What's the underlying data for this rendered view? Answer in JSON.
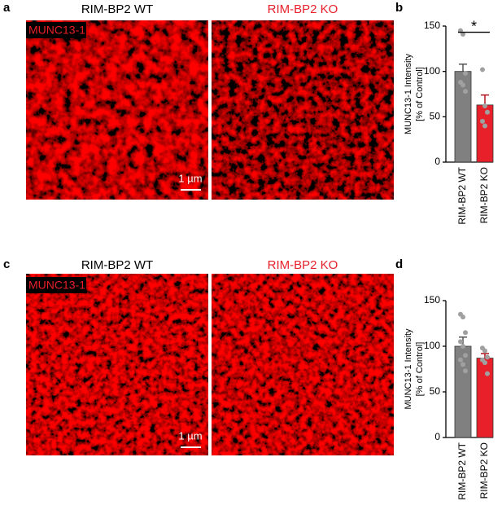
{
  "panels": [
    {
      "label": "a",
      "images": [
        {
          "title": "RIM-BP2 WT"
        },
        {
          "title": "RIM-BP2 KO"
        }
      ],
      "stain": "MUNC13-1",
      "scale_bar": "1 µm"
    },
    {
      "label": "c",
      "images": [
        {
          "title": "RIM-BP2 WT"
        },
        {
          "title": "RIM-BP2 KO"
        }
      ],
      "stain": "MUNC13-1",
      "scale_bar": "1 µm"
    }
  ],
  "chart_data": [
    {
      "type": "bar",
      "panel": "b",
      "ylabel": [
        "MUNC13-1 Intensity",
        "[% of Control]"
      ],
      "categories": [
        "RIM-BP2 WT",
        "RIM-BP2 KO"
      ],
      "values": [
        100,
        63
      ],
      "errors": [
        8,
        11
      ],
      "colors": [
        "#808080",
        "#e8202a"
      ],
      "points": [
        [
          145,
          141,
          98,
          88,
          85,
          78
        ],
        [
          102,
          62,
          55,
          45,
          40
        ]
      ],
      "significance": "*",
      "ylim": [
        0,
        150
      ],
      "yticks": [
        0,
        50,
        100,
        150
      ]
    },
    {
      "type": "bar",
      "panel": "d",
      "ylabel": [
        "MUNC13-1 Intensity",
        "[% of Control]"
      ],
      "categories": [
        "RIM-BP2 WT",
        "RIM-BP2 KO"
      ],
      "values": [
        100,
        87
      ],
      "errors": [
        10,
        5
      ],
      "colors": [
        "#808080",
        "#e8202a"
      ],
      "points": [
        [
          135,
          132,
          115,
          105,
          100,
          90,
          85,
          80,
          73
        ],
        [
          98,
          95,
          88,
          85,
          82,
          70
        ]
      ],
      "ylim": [
        0,
        150
      ],
      "yticks": [
        0,
        50,
        100,
        150
      ]
    }
  ]
}
